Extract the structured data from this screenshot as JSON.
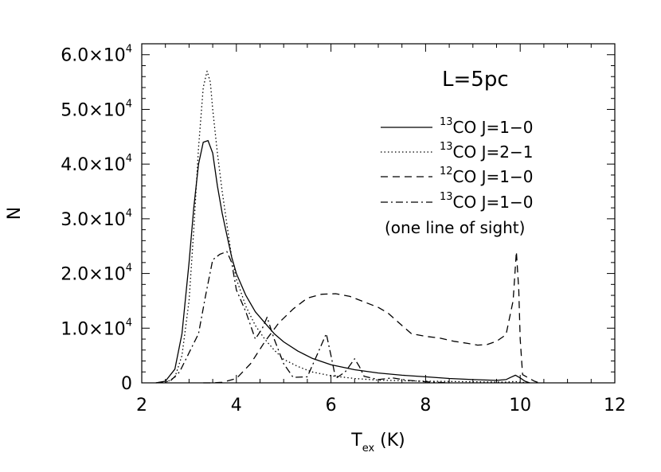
{
  "chart_data": {
    "type": "line",
    "annotation": "L=5pc",
    "xlabel": {
      "main": "T",
      "sub": "ex",
      "rest": " (K)"
    },
    "ylabel": "N",
    "xlim": [
      2,
      12
    ],
    "ylim": [
      0,
      62000
    ],
    "x_ticks": [
      2,
      4,
      6,
      8,
      10,
      12
    ],
    "x_tick_labels": [
      "2",
      "4",
      "6",
      "8",
      "10",
      "12"
    ],
    "y_ticks": [
      0,
      10000,
      20000,
      30000,
      40000,
      50000,
      60000
    ],
    "y_tick_labels": [
      {
        "mant": "0",
        "exp": ""
      },
      {
        "mant": "1.0×10",
        "exp": "4"
      },
      {
        "mant": "2.0×10",
        "exp": "4"
      },
      {
        "mant": "3.0×10",
        "exp": "4"
      },
      {
        "mant": "4.0×10",
        "exp": "4"
      },
      {
        "mant": "5.0×10",
        "exp": "4"
      },
      {
        "mant": "6.0×10",
        "exp": "4"
      }
    ],
    "grid": false,
    "legend_position": "top-right",
    "series": [
      {
        "name": "13CO J=1-0",
        "legend": {
          "iso": "13",
          "text": "CO J=1−0"
        },
        "style": "solid",
        "points": [
          [
            2.3,
            0
          ],
          [
            2.5,
            300
          ],
          [
            2.7,
            2500
          ],
          [
            2.85,
            9000
          ],
          [
            3.0,
            22000
          ],
          [
            3.1,
            32000
          ],
          [
            3.2,
            40000
          ],
          [
            3.3,
            44000
          ],
          [
            3.4,
            44300
          ],
          [
            3.5,
            42000
          ],
          [
            3.6,
            36000
          ],
          [
            3.7,
            31000
          ],
          [
            3.8,
            27000
          ],
          [
            3.9,
            23000
          ],
          [
            4.0,
            20000
          ],
          [
            4.2,
            16000
          ],
          [
            4.4,
            13000
          ],
          [
            4.6,
            11000
          ],
          [
            4.8,
            9000
          ],
          [
            5.0,
            7500
          ],
          [
            5.3,
            5800
          ],
          [
            5.6,
            4500
          ],
          [
            6.0,
            3300
          ],
          [
            6.5,
            2400
          ],
          [
            7.0,
            1800
          ],
          [
            7.5,
            1400
          ],
          [
            8.0,
            1100
          ],
          [
            8.5,
            800
          ],
          [
            9.0,
            600
          ],
          [
            9.5,
            450
          ],
          [
            9.7,
            600
          ],
          [
            9.8,
            1000
          ],
          [
            9.9,
            1400
          ],
          [
            10.0,
            900
          ],
          [
            10.1,
            300
          ],
          [
            10.2,
            0
          ]
        ]
      },
      {
        "name": "13CO J=2-1",
        "legend": {
          "iso": "13",
          "text": "CO J=2−1"
        },
        "style": "dotted",
        "points": [
          [
            2.5,
            0
          ],
          [
            2.7,
            1000
          ],
          [
            2.85,
            5000
          ],
          [
            3.0,
            15000
          ],
          [
            3.1,
            28000
          ],
          [
            3.2,
            43000
          ],
          [
            3.3,
            54000
          ],
          [
            3.38,
            57000
          ],
          [
            3.45,
            55000
          ],
          [
            3.5,
            50000
          ],
          [
            3.6,
            42000
          ],
          [
            3.7,
            35000
          ],
          [
            3.8,
            29000
          ],
          [
            3.9,
            23000
          ],
          [
            4.0,
            19000
          ],
          [
            4.2,
            14000
          ],
          [
            4.4,
            10500
          ],
          [
            4.6,
            8000
          ],
          [
            4.8,
            6000
          ],
          [
            5.0,
            4300
          ],
          [
            5.3,
            3000
          ],
          [
            5.6,
            2000
          ],
          [
            6.0,
            1300
          ],
          [
            6.5,
            800
          ],
          [
            7.0,
            500
          ],
          [
            8.0,
            300
          ],
          [
            9.0,
            200
          ],
          [
            9.7,
            150
          ],
          [
            9.9,
            250
          ],
          [
            10.0,
            100
          ],
          [
            10.2,
            0
          ]
        ]
      },
      {
        "name": "12CO J=1-0",
        "legend": {
          "iso": "12",
          "text": "CO J=1−0"
        },
        "style": "dashed",
        "points": [
          [
            3.3,
            0
          ],
          [
            3.5,
            0
          ],
          [
            3.7,
            100
          ],
          [
            4.0,
            800
          ],
          [
            4.3,
            3500
          ],
          [
            4.6,
            7500
          ],
          [
            4.9,
            11000
          ],
          [
            5.2,
            13500
          ],
          [
            5.5,
            15500
          ],
          [
            5.8,
            16200
          ],
          [
            6.1,
            16300
          ],
          [
            6.4,
            15800
          ],
          [
            6.7,
            14800
          ],
          [
            7.0,
            13800
          ],
          [
            7.2,
            12800
          ],
          [
            7.5,
            10500
          ],
          [
            7.7,
            9000
          ],
          [
            8.0,
            8500
          ],
          [
            8.3,
            8200
          ],
          [
            8.6,
            7600
          ],
          [
            8.9,
            7200
          ],
          [
            9.1,
            6900
          ],
          [
            9.3,
            7000
          ],
          [
            9.5,
            7600
          ],
          [
            9.7,
            8800
          ],
          [
            9.85,
            15000
          ],
          [
            9.92,
            24000
          ],
          [
            9.97,
            17000
          ],
          [
            10.0,
            8000
          ],
          [
            10.05,
            1500
          ],
          [
            10.3,
            300
          ],
          [
            10.4,
            0
          ]
        ]
      },
      {
        "name": "13CO J=1-0 (one line of sight)",
        "legend": {
          "iso": "13",
          "text": "CO J=1−0",
          "line2": "(one line of sight)"
        },
        "style": "dashdot",
        "points": [
          [
            2.3,
            0
          ],
          [
            2.6,
            300
          ],
          [
            2.8,
            2000
          ],
          [
            3.0,
            5500
          ],
          [
            3.2,
            9000
          ],
          [
            3.35,
            16000
          ],
          [
            3.5,
            22500
          ],
          [
            3.65,
            23500
          ],
          [
            3.8,
            24000
          ],
          [
            3.9,
            22000
          ],
          [
            4.0,
            17000
          ],
          [
            4.2,
            13000
          ],
          [
            4.4,
            8000
          ],
          [
            4.55,
            10000
          ],
          [
            4.65,
            12000
          ],
          [
            4.8,
            8000
          ],
          [
            5.0,
            3500
          ],
          [
            5.2,
            1000
          ],
          [
            5.5,
            1100
          ],
          [
            5.7,
            5000
          ],
          [
            5.9,
            9000
          ],
          [
            6.0,
            5000
          ],
          [
            6.1,
            800
          ],
          [
            6.3,
            2000
          ],
          [
            6.5,
            4400
          ],
          [
            6.6,
            3000
          ],
          [
            6.7,
            1200
          ],
          [
            7.0,
            600
          ],
          [
            7.3,
            900
          ],
          [
            7.6,
            500
          ],
          [
            8.0,
            200
          ],
          [
            8.5,
            0
          ]
        ]
      }
    ]
  }
}
